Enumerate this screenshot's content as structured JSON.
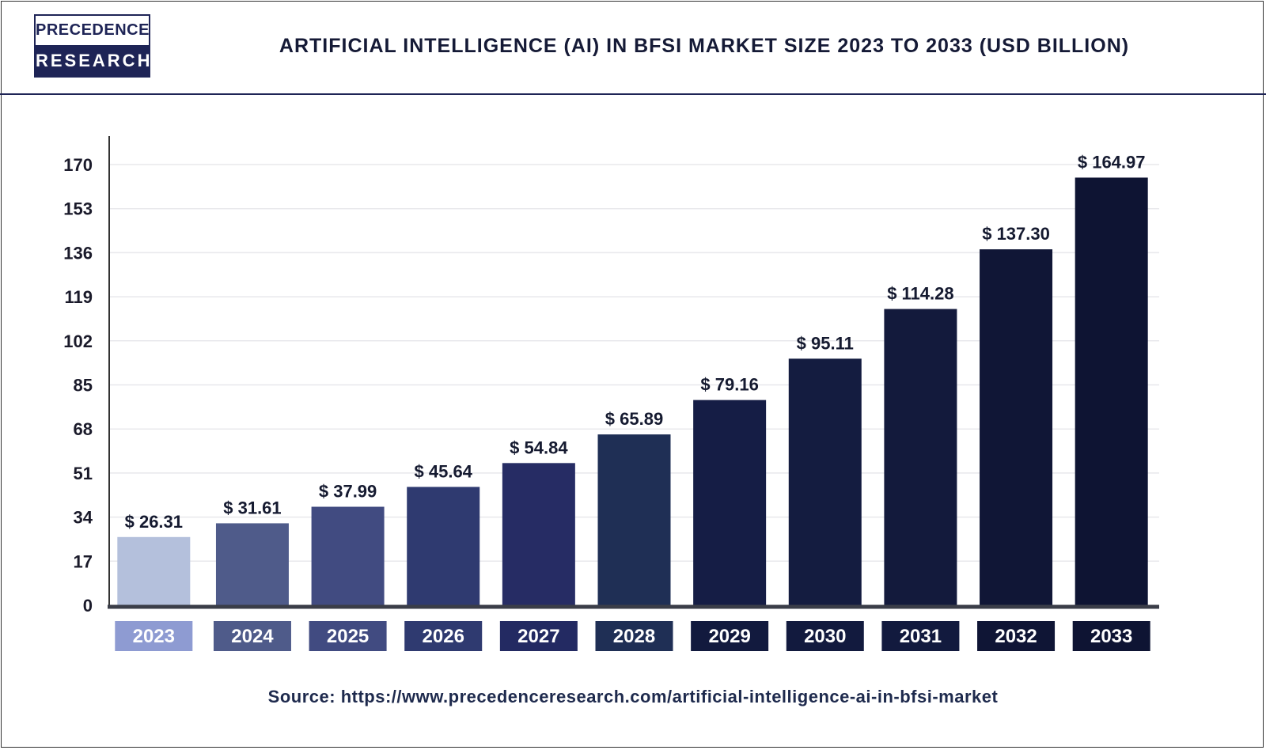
{
  "logo": {
    "line1": "PRECEDENCE",
    "line2": "RESEARCH"
  },
  "source": "Source: https://www.precedenceresearch.com/artificial-intelligence-ai-in-bfsi-market",
  "chart_data": {
    "type": "bar",
    "title": "ARTIFICIAL INTELLIGENCE (AI) IN BFSI MARKET SIZE 2023 TO 2033 (USD BILLION)",
    "xlabel": "",
    "ylabel": "",
    "ylim": [
      0,
      170
    ],
    "yticks": [
      0,
      17,
      34,
      51,
      68,
      85,
      102,
      119,
      136,
      153,
      170
    ],
    "grid": true,
    "categories": [
      "2023",
      "2024",
      "2025",
      "2026",
      "2027",
      "2028",
      "2029",
      "2030",
      "2031",
      "2032",
      "2033"
    ],
    "values": [
      26.31,
      31.61,
      37.99,
      45.64,
      54.84,
      65.89,
      79.16,
      95.11,
      114.28,
      137.3,
      164.97
    ],
    "data_labels": [
      "$ 26.31",
      "$ 31.61",
      "$ 37.99",
      "$ 45.64",
      "$ 54.84",
      "$ 65.89",
      "$ 79.16",
      "$ 95.11",
      "$ 114.28",
      "$ 137.30",
      "$ 164.97"
    ],
    "bar_colors": [
      "#b4c0dc",
      "#4f5b8a",
      "#414b81",
      "#2f3a70",
      "#262c64",
      "#1f2f55",
      "#151d45",
      "#141c40",
      "#131a3c",
      "#101636",
      "#0e1433"
    ],
    "label_box_colors": [
      "#8e9bd2",
      "#4f5b8a",
      "#414b81",
      "#2f3a70",
      "#232a62",
      "#1f2f55",
      "#121a3e",
      "#121a3e",
      "#121a3e",
      "#0f1535",
      "#0e1433"
    ]
  }
}
